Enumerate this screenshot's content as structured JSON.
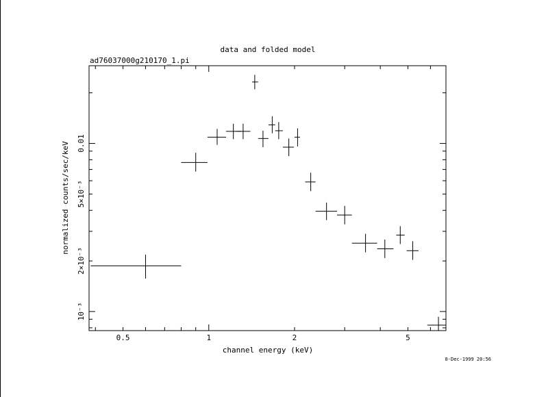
{
  "chart_data": {
    "type": "scatter",
    "title": "data and folded model",
    "subtitle": "ad76037000g210170_1.pi",
    "xlabel": "channel energy (keV)",
    "ylabel": "normalized counts/sec/keV",
    "timestamp": "8-Dec-1999 20:56",
    "x_scale": "log",
    "y_scale": "log",
    "xlim": [
      0.38,
      6.8
    ],
    "ylim": [
      0.00077,
      0.029
    ],
    "x_ticks": [
      {
        "value": 0.5,
        "label": "0.5"
      },
      {
        "value": 1,
        "label": "1"
      },
      {
        "value": 2,
        "label": "2"
      },
      {
        "value": 5,
        "label": "5"
      }
    ],
    "y_ticks": [
      {
        "value": 0.001,
        "label": "10⁻³"
      },
      {
        "value": 0.002,
        "label": "2×10⁻³"
      },
      {
        "value": 0.005,
        "label": "5×10⁻³"
      },
      {
        "value": 0.01,
        "label": "0.01"
      }
    ],
    "series": [
      {
        "points": [
          {
            "x": 0.6,
            "xlo": 0.385,
            "xhi": 0.8,
            "y": 0.00187,
            "ylo": 0.00157,
            "yhi": 0.00218
          },
          {
            "x": 0.9,
            "xlo": 0.8,
            "xhi": 0.99,
            "y": 0.0077,
            "ylo": 0.0068,
            "yhi": 0.0088
          },
          {
            "x": 1.07,
            "xlo": 0.99,
            "xhi": 1.15,
            "y": 0.0109,
            "ylo": 0.0098,
            "yhi": 0.0122
          },
          {
            "x": 1.22,
            "xlo": 1.15,
            "xhi": 1.3,
            "y": 0.0118,
            "ylo": 0.0106,
            "yhi": 0.0131
          },
          {
            "x": 1.32,
            "xlo": 1.25,
            "xhi": 1.4,
            "y": 0.0118,
            "ylo": 0.0106,
            "yhi": 0.0131
          },
          {
            "x": 1.45,
            "xlo": 1.42,
            "xhi": 1.49,
            "y": 0.0232,
            "ylo": 0.021,
            "yhi": 0.0256
          },
          {
            "x": 1.55,
            "xlo": 1.49,
            "xhi": 1.62,
            "y": 0.0107,
            "ylo": 0.0095,
            "yhi": 0.0119
          },
          {
            "x": 1.67,
            "xlo": 1.62,
            "xhi": 1.71,
            "y": 0.0129,
            "ylo": 0.0115,
            "yhi": 0.0145
          },
          {
            "x": 1.76,
            "xlo": 1.71,
            "xhi": 1.82,
            "y": 0.0119,
            "ylo": 0.0106,
            "yhi": 0.0134
          },
          {
            "x": 1.91,
            "xlo": 1.82,
            "xhi": 1.99,
            "y": 0.0095,
            "ylo": 0.0084,
            "yhi": 0.0107
          },
          {
            "x": 2.05,
            "xlo": 2.0,
            "xhi": 2.09,
            "y": 0.0109,
            "ylo": 0.0096,
            "yhi": 0.0123
          },
          {
            "x": 2.28,
            "xlo": 2.18,
            "xhi": 2.37,
            "y": 0.0059,
            "ylo": 0.0052,
            "yhi": 0.0067
          },
          {
            "x": 2.59,
            "xlo": 2.37,
            "xhi": 2.82,
            "y": 0.00395,
            "ylo": 0.0035,
            "yhi": 0.00445
          },
          {
            "x": 3.0,
            "xlo": 2.82,
            "xhi": 3.18,
            "y": 0.00375,
            "ylo": 0.0033,
            "yhi": 0.00425
          },
          {
            "x": 3.55,
            "xlo": 3.18,
            "xhi": 3.9,
            "y": 0.00255,
            "ylo": 0.00225,
            "yhi": 0.0029
          },
          {
            "x": 4.15,
            "xlo": 3.9,
            "xhi": 4.45,
            "y": 0.00236,
            "ylo": 0.00208,
            "yhi": 0.00268
          },
          {
            "x": 4.7,
            "xlo": 4.55,
            "xhi": 4.87,
            "y": 0.00285,
            "ylo": 0.00252,
            "yhi": 0.00322
          },
          {
            "x": 5.2,
            "xlo": 4.95,
            "xhi": 5.45,
            "y": 0.0023,
            "ylo": 0.00203,
            "yhi": 0.00262
          },
          {
            "x": 6.4,
            "xlo": 5.85,
            "xhi": 6.8,
            "y": 0.00083,
            "ylo": 0.00077,
            "yhi": 0.00093
          }
        ]
      }
    ],
    "grid": false,
    "legend": "none"
  }
}
